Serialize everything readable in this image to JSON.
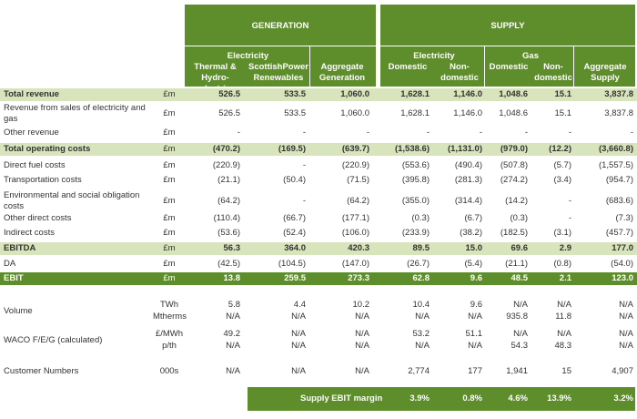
{
  "header": {
    "generation": "GENERATION",
    "supply": "SUPPLY",
    "groups": [
      {
        "label": "Electricity",
        "from": 0,
        "to": 1
      },
      {
        "label": "Electricity",
        "from": 3,
        "to": 4
      },
      {
        "label": "Gas",
        "from": 5,
        "to": 6
      }
    ],
    "columns": [
      "Thermal &\nHydro-electric",
      "ScottishPower\nRenewables",
      "Aggregate\nGeneration",
      "Domestic",
      "Non-\ndomestic",
      "Domestic",
      "Non-\ndomestic",
      "Aggregate\nSupply"
    ]
  },
  "rows": [
    {
      "label": "Total revenue",
      "unit": "£m",
      "values": [
        "526.5",
        "533.5",
        "1,060.0",
        "1,628.1",
        "1,146.0",
        "1,048.6",
        "15.1",
        "3,837.8"
      ]
    },
    {
      "label": "Revenue from sales of electricity and gas",
      "unit": "£m",
      "values": [
        "526.5",
        "533.5",
        "1,060.0",
        "1,628.1",
        "1,146.0",
        "1,048.6",
        "15.1",
        "3,837.8"
      ]
    },
    {
      "label": "Other revenue",
      "unit": "£m",
      "values": [
        "-",
        "-",
        "-",
        "-",
        "-",
        "-",
        "-",
        "-"
      ]
    },
    {
      "label": "Total operating costs",
      "unit": "£m",
      "values": [
        "(470.2)",
        "(169.5)",
        "(639.7)",
        "(1,538.6)",
        "(1,131.0)",
        "(979.0)",
        "(12.2)",
        "(3,660.8)"
      ]
    },
    {
      "label": "Direct fuel costs",
      "unit": "£m",
      "values": [
        "(220.9)",
        "-",
        "(220.9)",
        "(553.6)",
        "(490.4)",
        "(507.8)",
        "(5.7)",
        "(1,557.5)"
      ]
    },
    {
      "label": "Transportation costs",
      "unit": "£m",
      "values": [
        "(21.1)",
        "(50.4)",
        "(71.5)",
        "(395.8)",
        "(281.3)",
        "(274.2)",
        "(3.4)",
        "(954.7)"
      ]
    },
    {
      "label": "Environmental and social obligation costs",
      "unit": "£m",
      "values": [
        "(64.2)",
        "-",
        "(64.2)",
        "(355.0)",
        "(314.4)",
        "(14.2)",
        "-",
        "(683.6)"
      ]
    },
    {
      "label": "Other direct costs",
      "unit": "£m",
      "values": [
        "(110.4)",
        "(66.7)",
        "(177.1)",
        "(0.3)",
        "(6.7)",
        "(0.3)",
        "-",
        "(7.3)"
      ]
    },
    {
      "label": "Indirect costs",
      "unit": "£m",
      "values": [
        "(53.6)",
        "(52.4)",
        "(106.0)",
        "(233.9)",
        "(38.2)",
        "(182.5)",
        "(3.1)",
        "(457.7)"
      ]
    },
    {
      "label": "EBITDA",
      "unit": "£m",
      "values": [
        "56.3",
        "364.0",
        "420.3",
        "89.5",
        "15.0",
        "69.6",
        "2.9",
        "177.0"
      ]
    },
    {
      "label": "DA",
      "unit": "£m",
      "values": [
        "(42.5)",
        "(104.5)",
        "(147.0)",
        "(26.7)",
        "(5.4)",
        "(21.1)",
        "(0.8)",
        "(54.0)"
      ]
    },
    {
      "label": "EBIT",
      "unit": "£m",
      "values": [
        "13.8",
        "259.5",
        "273.3",
        "62.8",
        "9.6",
        "48.5",
        "2.1",
        "123.0"
      ]
    },
    {
      "label": "Volume",
      "unit": "TWh",
      "values": [
        "5.8",
        "4.4",
        "10.2",
        "10.4",
        "9.6",
        "N/A",
        "N/A",
        "N/A"
      ]
    },
    {
      "unit": "Mtherms",
      "values": [
        "N/A",
        "N/A",
        "N/A",
        "N/A",
        "N/A",
        "935.8",
        "11.8",
        "N/A"
      ]
    },
    {
      "label": "WACO F/E/G (calculated)",
      "unit": "£/MWh",
      "values": [
        "49.2",
        "N/A",
        "N/A",
        "53.2",
        "51.1",
        "N/A",
        "N/A",
        "N/A"
      ]
    },
    {
      "unit": "p/th",
      "values": [
        "N/A",
        "N/A",
        "N/A",
        "N/A",
        "N/A",
        "54.3",
        "48.3",
        "N/A"
      ]
    },
    {
      "label": "Customer Numbers",
      "unit": "000s",
      "values": [
        "N/A",
        "N/A",
        "N/A",
        "2,774",
        "177",
        "1,941",
        "15",
        "4,907"
      ]
    }
  ],
  "margin": {
    "label": "Supply EBIT margin",
    "values": [
      "3.9%",
      "0.8%",
      "4.6%",
      "13.9%",
      "3.2%"
    ]
  }
}
